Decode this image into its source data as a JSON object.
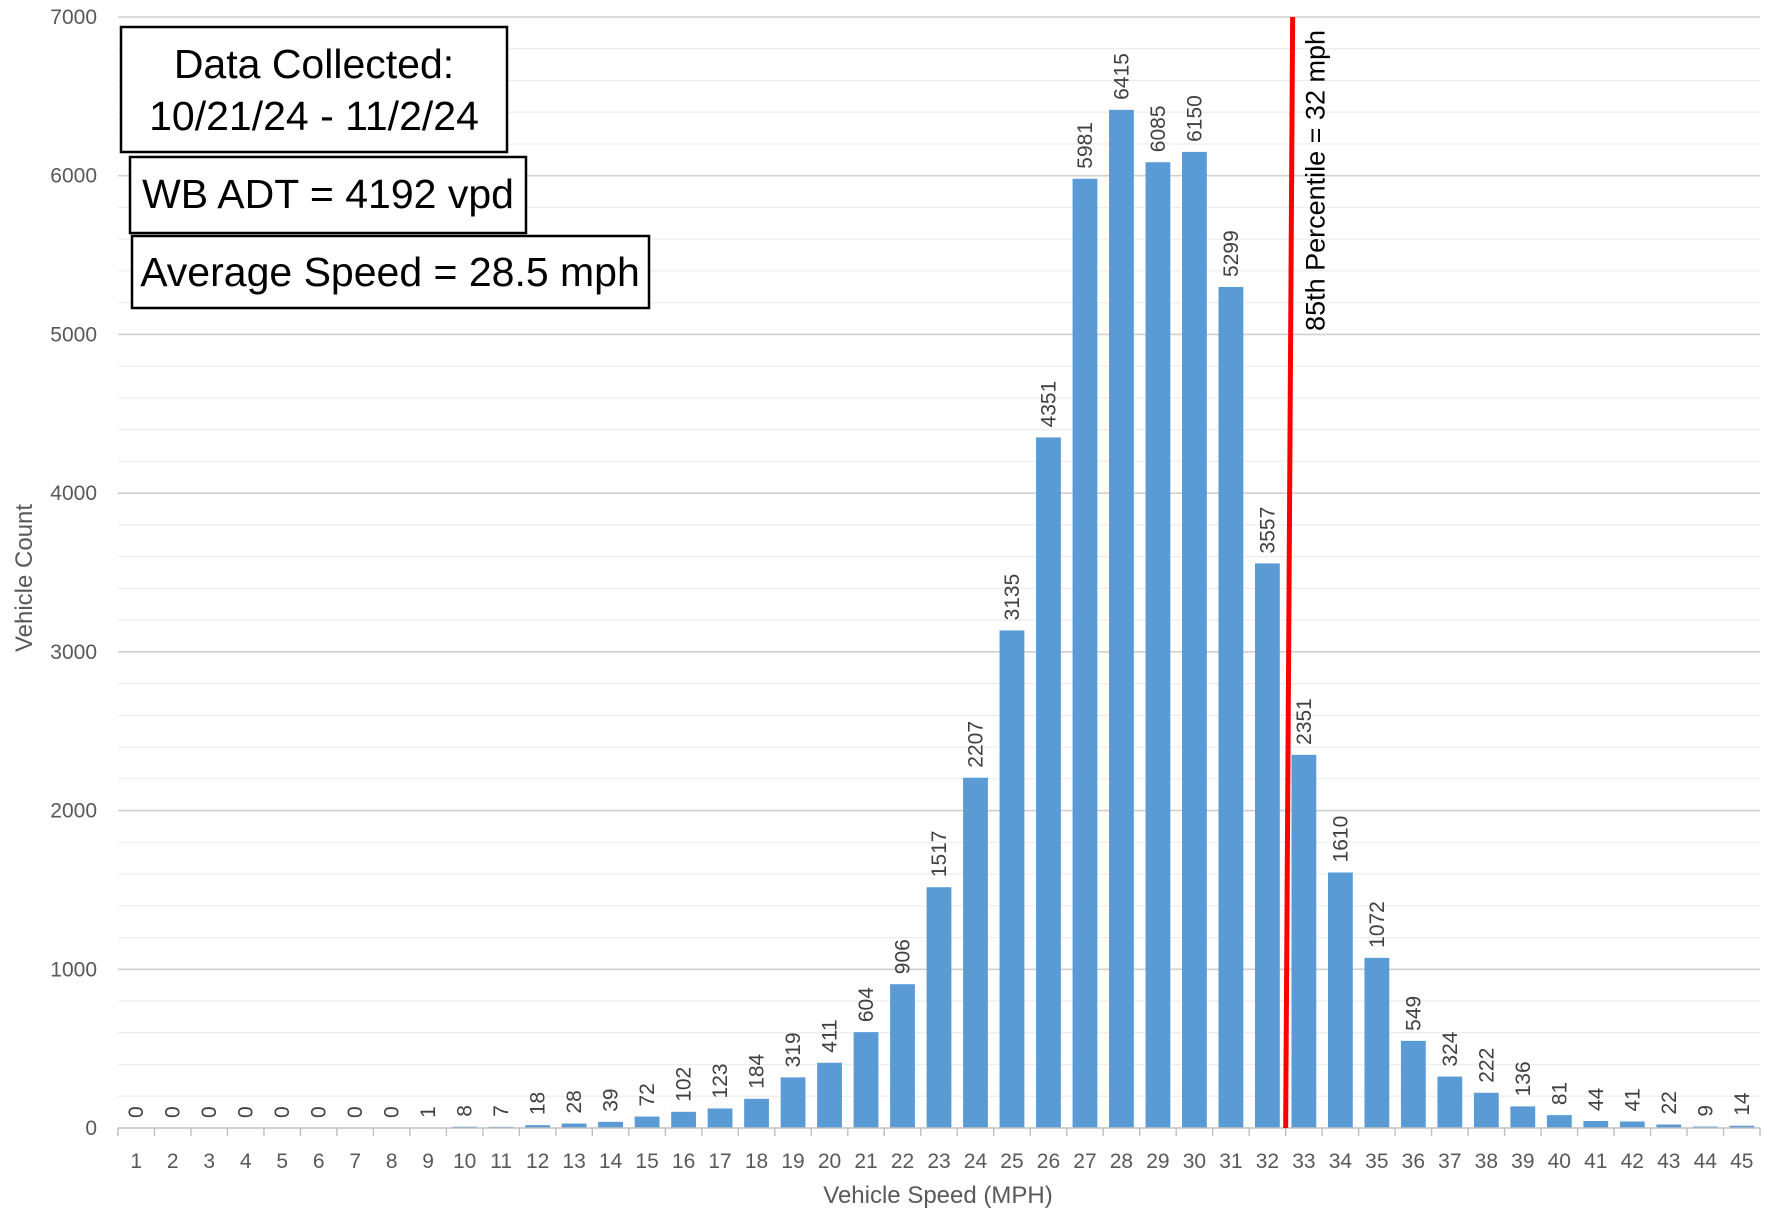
{
  "chart_data": {
    "type": "bar",
    "title": "",
    "xlabel": "Vehicle Speed (MPH)",
    "ylabel": "Vehicle Count",
    "ylim": [
      0,
      7000
    ],
    "yticks": [
      0,
      1000,
      2000,
      3000,
      4000,
      5000,
      6000,
      7000
    ],
    "grid": true,
    "minor_grid": true,
    "legend": "none",
    "bar_color": "#5B9BD5",
    "categories": [
      "1",
      "2",
      "3",
      "4",
      "5",
      "6",
      "7",
      "8",
      "9",
      "10",
      "11",
      "12",
      "13",
      "14",
      "15",
      "16",
      "17",
      "18",
      "19",
      "20",
      "21",
      "22",
      "23",
      "24",
      "25",
      "26",
      "27",
      "28",
      "29",
      "30",
      "31",
      "32",
      "33",
      "34",
      "35",
      "36",
      "37",
      "38",
      "39",
      "40",
      "41",
      "42",
      "43",
      "44",
      "45"
    ],
    "values": [
      0,
      0,
      0,
      0,
      0,
      0,
      0,
      0,
      1,
      8,
      7,
      18,
      28,
      39,
      72,
      102,
      123,
      184,
      319,
      411,
      604,
      906,
      1517,
      2207,
      3135,
      4351,
      5981,
      6415,
      6085,
      6150,
      5299,
      3557,
      2351,
      1610,
      1072,
      549,
      324,
      222,
      136,
      81,
      44,
      41,
      22,
      9,
      14
    ],
    "reference_line": {
      "x": 32.5,
      "label": "85th Percentile = 32 mph",
      "color": "#FF0000"
    },
    "annotations": [
      "Data Collected:",
      "10/21/24 - 11/2/24",
      "WB ADT = 4192 vpd",
      "Average Speed = 28.5 mph"
    ]
  }
}
